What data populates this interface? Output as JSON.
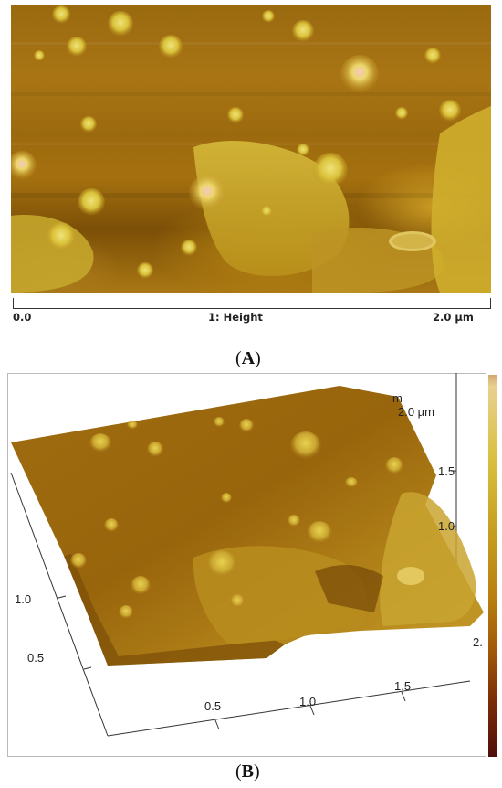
{
  "panel_a": {
    "label_paren_open": "(",
    "label_letter": "A",
    "label_paren_close": ")",
    "scale_start": "0.0",
    "scale_channel": "1: Height",
    "scale_end": "2.0 µm"
  },
  "panel_b": {
    "label_paren_open": "(",
    "label_letter": "B",
    "label_paren_close": ")",
    "top_unit_fragment": "m",
    "top_tick": "2.0 µm",
    "right_ticks": [
      "1.5",
      "1.0"
    ],
    "right_edge_tick": "2.",
    "left_ticks": [
      "1.0",
      "0.5"
    ],
    "bottom_ticks": [
      "0.5",
      "1.0",
      "1.5"
    ]
  },
  "colors": {
    "surface_dark": "#7b4f07",
    "surface_mid": "#a97514",
    "feature_yellow": "#e2d24a",
    "feature_highlight": "#f3c7b8",
    "colorbar_top": "#d4a870",
    "colorbar_bottom": "#4e0e0a"
  }
}
